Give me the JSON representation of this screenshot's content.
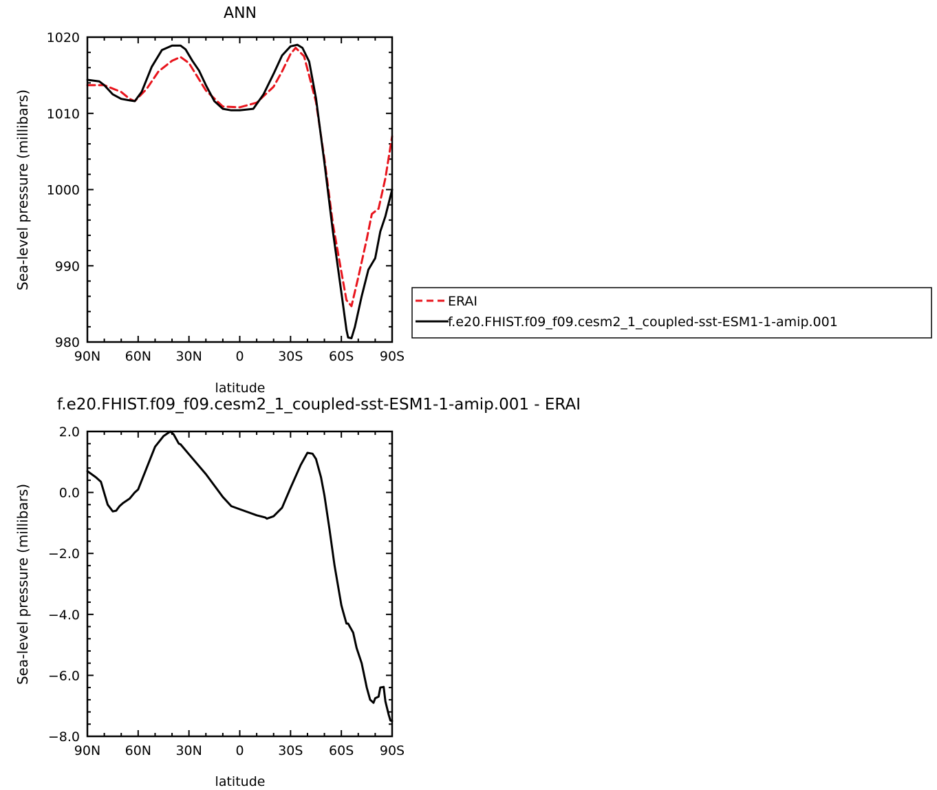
{
  "chart_data": [
    {
      "type": "line",
      "title": "ANN",
      "xlabel": "latitude",
      "ylabel": "Sea-level pressure (millibars)",
      "xlim": [
        -90,
        90
      ],
      "ylim": [
        980,
        1020
      ],
      "xticks": [
        -90,
        -60,
        -30,
        0,
        30,
        60,
        90
      ],
      "xtick_labels": [
        "90N",
        "60N",
        "30N",
        "0",
        "30S",
        "60S",
        "90S"
      ],
      "yticks": [
        980,
        990,
        1000,
        1010,
        1020
      ],
      "ytick_labels": [
        "980",
        "990",
        "1000",
        "1010",
        "1020"
      ],
      "legend": "right, outside",
      "series": [
        {
          "name": "ERAI",
          "color": "#e8141c",
          "dash": "dashed",
          "x": [
            -90,
            -80,
            -70,
            -65,
            -62,
            -55,
            -48,
            -40,
            -35,
            -30,
            -20,
            -10,
            0,
            10,
            20,
            25,
            30,
            33,
            38,
            45,
            50,
            55,
            60,
            63,
            66,
            70,
            75,
            78,
            82,
            86,
            90
          ],
          "y": [
            1013.7,
            1013.7,
            1012.8,
            1011.9,
            1011.6,
            1013.2,
            1015.5,
            1016.9,
            1017.4,
            1016.6,
            1013.0,
            1010.9,
            1010.8,
            1011.4,
            1013.5,
            1015.5,
            1017.8,
            1018.6,
            1017.5,
            1011.5,
            1004.0,
            995.5,
            989.2,
            985.5,
            984.7,
            988.5,
            993.5,
            996.8,
            997.5,
            1001.5,
            1007.0
          ]
        },
        {
          "name": "f.e20.FHIST.f09_f09.cesm2_1_coupled-sst-ESM1-1-amip.001",
          "color": "#000000",
          "dash": "solid",
          "x": [
            -90,
            -83,
            -80,
            -75,
            -70,
            -65,
            -62,
            -58,
            -52,
            -46,
            -40,
            -35,
            -32,
            -28,
            -24,
            -20,
            -15,
            -10,
            -5,
            0,
            8,
            14,
            20,
            25,
            30,
            34,
            37,
            41,
            45,
            50,
            55,
            60,
            63,
            64,
            66,
            68,
            72,
            76,
            80,
            83,
            86,
            90
          ],
          "y": [
            1014.4,
            1014.2,
            1013.7,
            1012.5,
            1011.9,
            1011.7,
            1011.6,
            1012.8,
            1016.1,
            1018.3,
            1018.9,
            1018.9,
            1018.4,
            1016.9,
            1015.6,
            1013.7,
            1011.6,
            1010.6,
            1010.4,
            1010.4,
            1010.6,
            1012.5,
            1015.2,
            1017.6,
            1018.8,
            1019.0,
            1018.6,
            1016.8,
            1012.0,
            1003.5,
            994.5,
            986.5,
            981.6,
            980.6,
            980.5,
            982.0,
            986.0,
            989.5,
            991.0,
            994.5,
            996.5,
            1000.0
          ]
        }
      ]
    },
    {
      "type": "line",
      "title": "f.e20.FHIST.f09_f09.cesm2_1_coupled-sst-ESM1-1-amip.001 - ERAI",
      "xlabel": "latitude",
      "ylabel": "Sea-level pressure (millibars)",
      "xlim": [
        -90,
        90
      ],
      "ylim": [
        -8,
        2
      ],
      "xticks": [
        -90,
        -60,
        -30,
        0,
        30,
        60,
        90
      ],
      "xtick_labels": [
        "90N",
        "60N",
        "30N",
        "0",
        "30S",
        "60S",
        "90S"
      ],
      "yticks": [
        -8,
        -6,
        -4,
        -2,
        0,
        2
      ],
      "ytick_labels": [
        "−8.0",
        "−6.0",
        "−4.0",
        "−2.0",
        "0.0",
        "2.0"
      ],
      "series": [
        {
          "color": "#000000",
          "dash": "solid",
          "x": [
            -90,
            -85,
            -82,
            -78,
            -75,
            -73,
            -71,
            -69,
            -65,
            -62,
            -60,
            -55,
            -50,
            -45,
            -41,
            -39,
            -36,
            -35,
            -30,
            -20,
            -10,
            -5,
            0,
            5,
            10,
            15,
            16,
            20,
            25,
            30,
            36,
            40,
            43,
            45,
            48,
            50,
            53,
            56,
            60,
            61,
            63,
            64,
            67,
            69,
            72,
            75,
            77,
            79,
            80,
            82,
            83,
            85,
            86,
            88,
            89,
            90
          ],
          "y": [
            0.7,
            0.5,
            0.35,
            -0.4,
            -0.62,
            -0.6,
            -0.45,
            -0.35,
            -0.2,
            0.0,
            0.1,
            0.8,
            1.5,
            1.85,
            2.0,
            1.9,
            1.6,
            1.58,
            1.25,
            0.6,
            -0.15,
            -0.45,
            -0.55,
            -0.65,
            -0.75,
            -0.82,
            -0.86,
            -0.78,
            -0.5,
            0.15,
            0.9,
            1.3,
            1.27,
            1.1,
            0.5,
            -0.1,
            -1.2,
            -2.4,
            -3.7,
            -3.9,
            -4.3,
            -4.3,
            -4.6,
            -5.1,
            -5.6,
            -6.4,
            -6.8,
            -6.9,
            -6.75,
            -6.7,
            -6.4,
            -6.38,
            -6.85,
            -7.3,
            -7.48,
            -7.5
          ]
        }
      ]
    }
  ]
}
